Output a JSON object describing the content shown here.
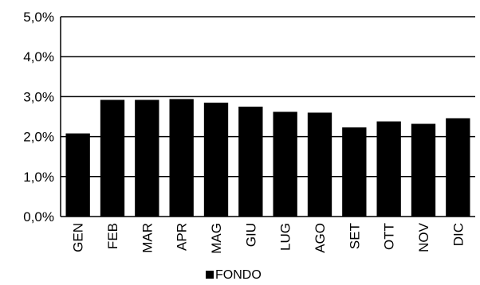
{
  "chart_data": {
    "type": "bar",
    "categories": [
      "GEN",
      "FEB",
      "MAR",
      "APR",
      "MAG",
      "GIU",
      "LUG",
      "AGO",
      "SET",
      "OTT",
      "NOV",
      "DIC"
    ],
    "series": [
      {
        "name": "FONDO",
        "values": [
          2.08,
          2.92,
          2.92,
          2.94,
          2.85,
          2.75,
          2.62,
          2.6,
          2.23,
          2.38,
          2.32,
          2.46
        ]
      }
    ],
    "ylim": [
      0,
      5
    ],
    "yticks": [
      {
        "value": 0,
        "label": "0,0%"
      },
      {
        "value": 1,
        "label": "1,0%"
      },
      {
        "value": 2,
        "label": "2,0%"
      },
      {
        "value": 3,
        "label": "3,0%"
      },
      {
        "value": 4,
        "label": "4,0%"
      },
      {
        "value": 5,
        "label": "5,0%"
      }
    ],
    "grid": true,
    "legend_position": "bottom",
    "bar_color": "#000000",
    "grid_color": "#000000"
  }
}
